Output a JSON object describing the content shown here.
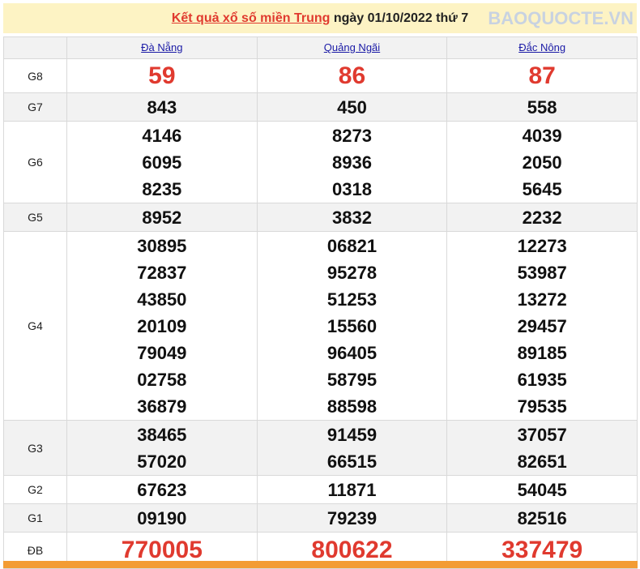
{
  "title": {
    "link": "Kết quả xổ số miền Trung",
    "rest": " ngày 01/10/2022 thứ 7"
  },
  "provinces": [
    "Đà Nẵng",
    "Quảng Ngãi",
    "Đắc Nông"
  ],
  "prizes": [
    {
      "label": "G8",
      "values": [
        [
          "59"
        ],
        [
          "86"
        ],
        [
          "87"
        ]
      ],
      "highlight": true
    },
    {
      "label": "G7",
      "values": [
        [
          "843"
        ],
        [
          "450"
        ],
        [
          "558"
        ]
      ]
    },
    {
      "label": "G6",
      "values": [
        [
          "4146",
          "6095",
          "8235"
        ],
        [
          "8273",
          "8936",
          "0318"
        ],
        [
          "4039",
          "2050",
          "5645"
        ]
      ]
    },
    {
      "label": "G5",
      "values": [
        [
          "8952"
        ],
        [
          "3832"
        ],
        [
          "2232"
        ]
      ]
    },
    {
      "label": "G4",
      "values": [
        [
          "30895",
          "72837",
          "43850",
          "20109",
          "79049",
          "02758",
          "36879"
        ],
        [
          "06821",
          "95278",
          "51253",
          "15560",
          "96405",
          "58795",
          "88598"
        ],
        [
          "12273",
          "53987",
          "13272",
          "29457",
          "89185",
          "61935",
          "79535"
        ]
      ]
    },
    {
      "label": "G3",
      "values": [
        [
          "38465",
          "57020"
        ],
        [
          "91459",
          "66515"
        ],
        [
          "37057",
          "82651"
        ]
      ]
    },
    {
      "label": "G2",
      "values": [
        [
          "67623"
        ],
        [
          "11871"
        ],
        [
          "54045"
        ]
      ]
    },
    {
      "label": "G1",
      "values": [
        [
          "09190"
        ],
        [
          "79239"
        ],
        [
          "82516"
        ]
      ]
    },
    {
      "label": "ĐB",
      "values": [
        [
          "770005"
        ],
        [
          "800622"
        ],
        [
          "337479"
        ]
      ],
      "highlight": true
    }
  ],
  "watermark": "BAOQUOCTE.VN",
  "colors": {
    "highlight": "#e03a2f",
    "link": "#1a1aa6",
    "title_bg": "#fdf3c4",
    "footer_bar": "#f39c33"
  }
}
